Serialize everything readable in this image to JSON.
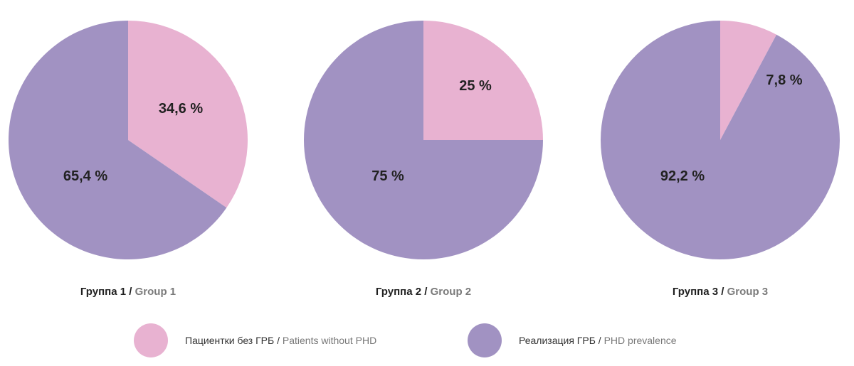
{
  "colors": {
    "patients_without_phd": "#e8b2d1",
    "phd_prevalence": "#a192c2"
  },
  "chart_data": [
    {
      "type": "pie",
      "title": "Группа 1 / Group 1",
      "slices": [
        {
          "label": "Пациентки без ГРБ / Patients without PHD",
          "value": 34.6,
          "text": "34,6 %"
        },
        {
          "label": "Реализация ГРБ / PHD prevalence",
          "value": 65.4,
          "text": "65,4 %"
        }
      ]
    },
    {
      "type": "pie",
      "title": "Группа 2 / Group 2",
      "slices": [
        {
          "label": "Пациентки без ГРБ / Patients without PHD",
          "value": 25,
          "text": "25 %"
        },
        {
          "label": "Реализация ГРБ / PHD prevalence",
          "value": 75,
          "text": "75 %"
        }
      ]
    },
    {
      "type": "pie",
      "title": "Группа 3 / Group 3",
      "slices": [
        {
          "label": "Пациентки без ГРБ / Patients without PHD",
          "value": 7.8,
          "text": "7,8 %"
        },
        {
          "label": "Реализация ГРБ / PHD prevalence",
          "value": 92.2,
          "text": "92,2 %"
        }
      ]
    }
  ],
  "captions": [
    {
      "ru": "Группа 1",
      "sep": " / ",
      "en": "Group 1"
    },
    {
      "ru": "Группа 2",
      "sep": " / ",
      "en": "Group 2"
    },
    {
      "ru": "Группа 3",
      "sep": " / ",
      "en": "Group 3"
    }
  ],
  "legend": [
    {
      "ru": "Пациентки без ГРБ",
      "sep": " / ",
      "en": "Patients without PHD",
      "color_key": "patients_without_phd"
    },
    {
      "ru": "Реализация ГРБ",
      "sep": " / ",
      "en": "PHD prevalence",
      "color_key": "phd_prevalence"
    }
  ]
}
